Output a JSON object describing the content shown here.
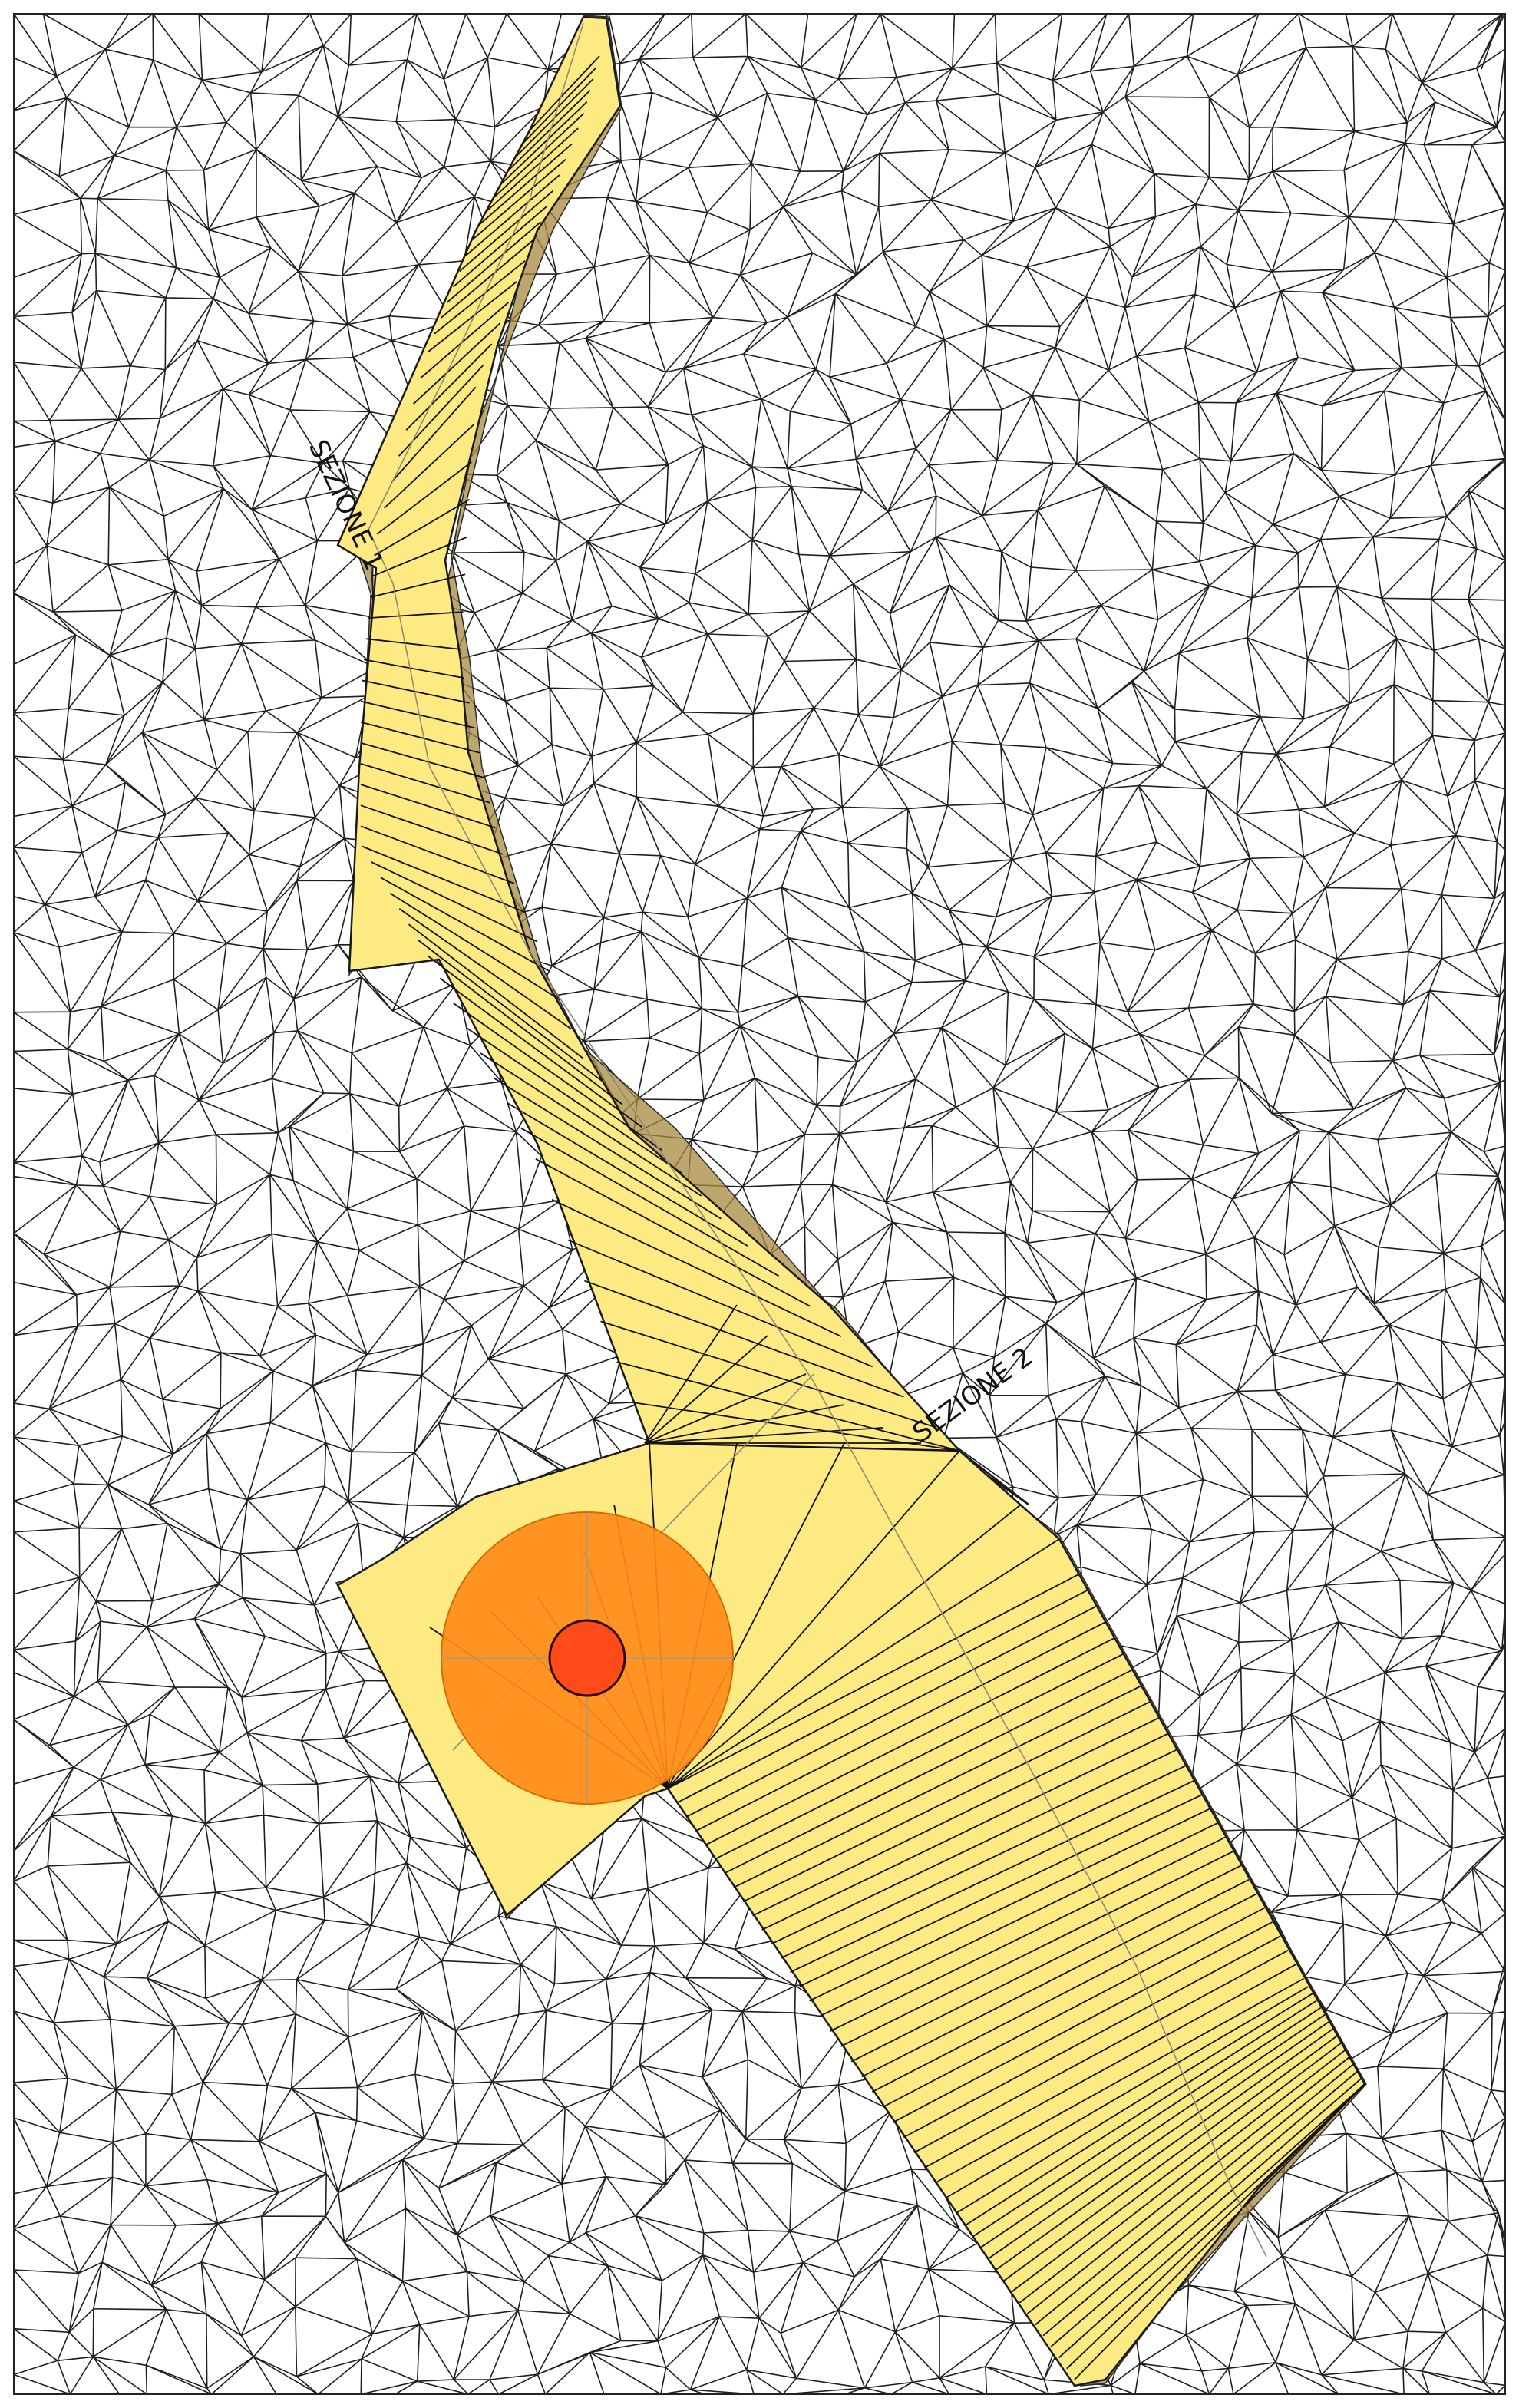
{
  "sections": [
    {
      "label": "SEZIONE 1"
    },
    {
      "label": "SEZIONE 2"
    }
  ],
  "colors": {
    "corridor": "#fdea83",
    "corridor_edge": "#a8893f",
    "outer_zone": "#ff8c1a",
    "inner_zone": "#ff4a1a",
    "mesh": "#1e1e1e"
  }
}
